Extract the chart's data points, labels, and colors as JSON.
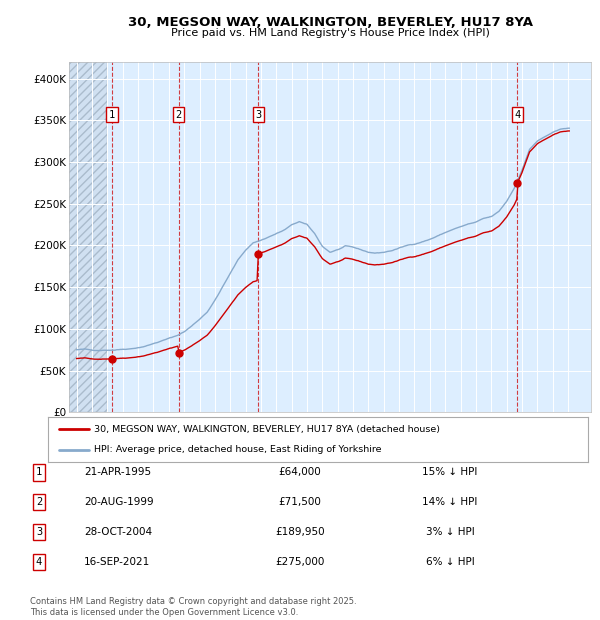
{
  "title_line1": "30, MEGSON WAY, WALKINGTON, BEVERLEY, HU17 8YA",
  "title_line2": "Price paid vs. HM Land Registry's House Price Index (HPI)",
  "background_color": "#ddeeff",
  "grid_color": "#ffffff",
  "purchases": [
    {
      "date_num": 1995.31,
      "price": 64000,
      "label": "1"
    },
    {
      "date_num": 1999.64,
      "price": 71500,
      "label": "2"
    },
    {
      "date_num": 2004.83,
      "price": 189950,
      "label": "3"
    },
    {
      "date_num": 2021.71,
      "price": 275000,
      "label": "4"
    }
  ],
  "table_entries": [
    {
      "num": "1",
      "date": "21-APR-1995",
      "price": "£64,000",
      "hpi": "15% ↓ HPI"
    },
    {
      "num": "2",
      "date": "20-AUG-1999",
      "price": "£71,500",
      "hpi": "14% ↓ HPI"
    },
    {
      "num": "3",
      "date": "28-OCT-2004",
      "price": "£189,950",
      "hpi": "3% ↓ HPI"
    },
    {
      "num": "4",
      "date": "16-SEP-2021",
      "price": "£275,000",
      "hpi": "6% ↓ HPI"
    }
  ],
  "legend_line1": "30, MEGSON WAY, WALKINGTON, BEVERLEY, HU17 8YA (detached house)",
  "legend_line2": "HPI: Average price, detached house, East Riding of Yorkshire",
  "red_color": "#cc0000",
  "blue_color": "#88aacc",
  "footer": "Contains HM Land Registry data © Crown copyright and database right 2025.\nThis data is licensed under the Open Government Licence v3.0.",
  "ylim": [
    0,
    420000
  ],
  "xlim": [
    1992.5,
    2026.5
  ],
  "yticks": [
    0,
    50000,
    100000,
    150000,
    200000,
    250000,
    300000,
    350000,
    400000
  ],
  "ytick_labels": [
    "£0",
    "£50K",
    "£100K",
    "£150K",
    "£200K",
    "£250K",
    "£300K",
    "£350K",
    "£400K"
  ],
  "xticks": [
    1993,
    1994,
    1995,
    1996,
    1997,
    1998,
    1999,
    2000,
    2001,
    2002,
    2003,
    2004,
    2005,
    2006,
    2007,
    2008,
    2009,
    2010,
    2011,
    2012,
    2013,
    2014,
    2015,
    2016,
    2017,
    2018,
    2019,
    2020,
    2021,
    2022,
    2023,
    2024,
    2025
  ]
}
